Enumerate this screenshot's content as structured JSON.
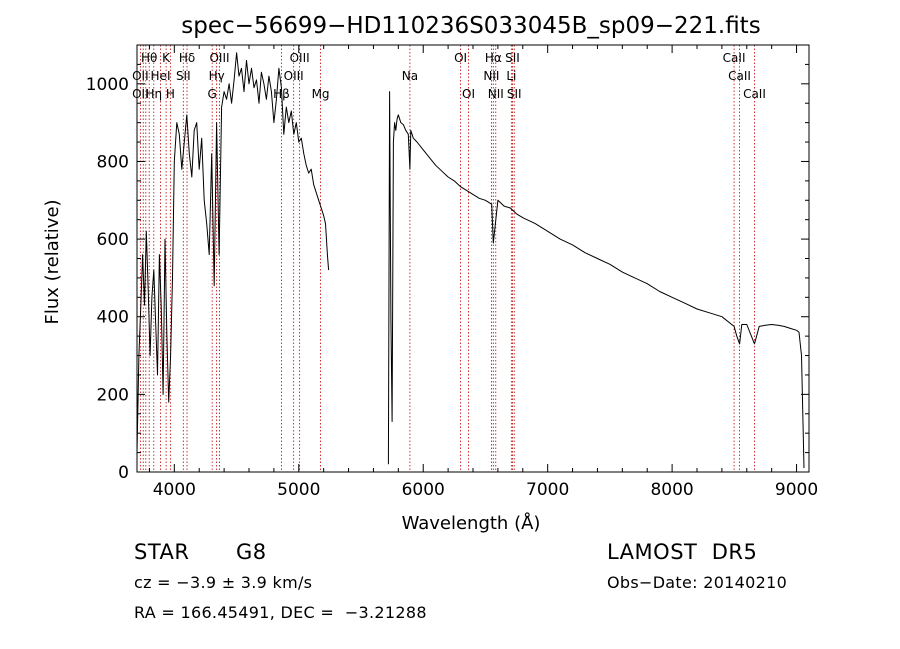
{
  "chart_data": {
    "type": "line",
    "title": "spec−56699−HD110236S033045B_sp09−221.fits",
    "xlabel": "Wavelength (Å)",
    "ylabel": "Flux (relative)",
    "xlim": [
      3700,
      9100
    ],
    "ylim": [
      0,
      1100
    ],
    "x_ticks": [
      4000,
      5000,
      6000,
      7000,
      8000,
      9000
    ],
    "y_ticks": [
      0,
      200,
      400,
      600,
      800,
      1000
    ],
    "x_tick_labels": [
      "4000",
      "5000",
      "6000",
      "7000",
      "8000",
      "9000"
    ],
    "y_tick_labels": [
      "0",
      "200",
      "400",
      "600",
      "800",
      "1000"
    ],
    "series": [
      {
        "segments": [
          {
            "x": [
              3700,
              3715,
              3730,
              3745,
              3760,
              3775,
              3790,
              3805,
              3820,
              3835,
              3850,
              3865,
              3880,
              3895,
              3910,
              3925,
              3940,
              3955,
              3970,
              3985,
              4000,
              4020,
              4040,
              4060,
              4080,
              4100,
              4120,
              4140,
              4160,
              4180,
              4200,
              4220,
              4240,
              4260,
              4280,
              4300,
              4320,
              4340,
              4360,
              4380,
              4400,
              4420,
              4440,
              4460,
              4480,
              4500,
              4520,
              4540,
              4560,
              4580,
              4600,
              4620,
              4640,
              4660,
              4680,
              4700,
              4720,
              4740,
              4760,
              4780,
              4800,
              4820,
              4840,
              4860,
              4880,
              4900,
              4920,
              4940,
              4960,
              4980,
              5000,
              5020,
              5040,
              5060,
              5080,
              5100,
              5120,
              5140,
              5160,
              5180,
              5200,
              5215,
              5230,
              5240
            ],
            "y": [
              50,
              300,
              420,
              560,
              430,
              620,
              470,
              300,
              450,
              520,
              380,
              250,
              560,
              420,
              200,
              600,
              350,
              180,
              300,
              500,
              800,
              900,
              870,
              780,
              850,
              920,
              820,
              760,
              880,
              900,
              780,
              860,
              700,
              640,
              560,
              820,
              480,
              900,
              560,
              940,
              980,
              960,
              1000,
              950,
              1010,
              1080,
              1020,
              1040,
              980,
              1060,
              1000,
              1040,
              990,
              1010,
              950,
              1030,
              1000,
              960,
              1020,
              980,
              900,
              960,
              1040,
              990,
              870,
              940,
              900,
              930,
              870,
              900,
              850,
              860,
              820,
              790,
              770,
              780,
              740,
              720,
              700,
              680,
              660,
              640,
              560,
              520
            ]
          },
          {
            "x": [
              5720,
              5730,
              5740,
              5750,
              5760,
              5770,
              5780,
              5790,
              5800,
              5810,
              5820,
              5840,
              5860,
              5880,
              5893,
              5900,
              5920,
              5950,
              6000,
              6050,
              6100,
              6150,
              6200,
              6250,
              6300,
              6350,
              6400,
              6450,
              6500,
              6550,
              6563,
              6600,
              6650,
              6700,
              6750,
              6800,
              6900,
              7000,
              7100,
              7200,
              7300,
              7400,
              7500,
              7600,
              7700,
              7800,
              7900,
              8000,
              8100,
              8200,
              8300,
              8400,
              8498,
              8520,
              8542,
              8560,
              8600,
              8662,
              8700,
              8750,
              8800,
              8850,
              8900,
              8950,
              9000,
              9020,
              9040,
              9060
            ],
            "y": [
              20,
              980,
              400,
              130,
              850,
              900,
              880,
              910,
              920,
              910,
              900,
              895,
              880,
              870,
              780,
              880,
              860,
              850,
              830,
              810,
              790,
              775,
              760,
              750,
              735,
              725,
              715,
              705,
              700,
              690,
              590,
              700,
              685,
              680,
              665,
              655,
              640,
              620,
              600,
              585,
              565,
              550,
              535,
              515,
              500,
              485,
              465,
              450,
              435,
              420,
              410,
              400,
              375,
              350,
              330,
              380,
              380,
              330,
              375,
              378,
              380,
              378,
              375,
              370,
              365,
              360,
              300,
              10
            ]
          }
        ]
      }
    ],
    "annotations": [
      {
        "label": "Hθ",
        "x": 3798,
        "row": 0
      },
      {
        "label": "K",
        "x": 3934,
        "row": 0
      },
      {
        "label": "Hδ",
        "x": 4102,
        "row": 0
      },
      {
        "label": "OIII",
        "x": 4363,
        "row": 0
      },
      {
        "label": "OIII",
        "x": 5007,
        "row": 0
      },
      {
        "label": "OI",
        "x": 6300,
        "row": 0
      },
      {
        "label": "Hα",
        "x": 6563,
        "row": 0
      },
      {
        "label": "SII",
        "x": 6717,
        "row": 0
      },
      {
        "label": "CaII",
        "x": 8498,
        "row": 0
      },
      {
        "label": "OII",
        "x": 3727,
        "row": 1
      },
      {
        "label": "HeI",
        "x": 3889,
        "row": 1
      },
      {
        "label": "SII",
        "x": 4072,
        "row": 1
      },
      {
        "label": "Hγ",
        "x": 4340,
        "row": 1
      },
      {
        "label": "OIII",
        "x": 4959,
        "row": 1
      },
      {
        "label": "Na",
        "x": 5893,
        "row": 1
      },
      {
        "label": "NII",
        "x": 6548,
        "row": 1
      },
      {
        "label": "Li",
        "x": 6708,
        "row": 1
      },
      {
        "label": "CaII",
        "x": 8542,
        "row": 1
      },
      {
        "label": "OII",
        "x": 3727,
        "row": 2
      },
      {
        "label": "Hη",
        "x": 3835,
        "row": 2
      },
      {
        "label": "H",
        "x": 3968,
        "row": 2
      },
      {
        "label": "G",
        "x": 4304,
        "row": 2
      },
      {
        "label": "Hβ",
        "x": 4861,
        "row": 2
      },
      {
        "label": "Mg",
        "x": 5175,
        "row": 2
      },
      {
        "label": "OI",
        "x": 6364,
        "row": 2
      },
      {
        "label": "NII",
        "x": 6583,
        "row": 2
      },
      {
        "label": "SII",
        "x": 6731,
        "row": 2
      },
      {
        "label": "CaII",
        "x": 8662,
        "row": 2
      }
    ],
    "line_marks": [
      3727,
      3750,
      3771,
      3798,
      3835,
      3889,
      3934,
      3968,
      4072,
      4102,
      4304,
      4340,
      4363,
      4861,
      4959,
      5007,
      5175,
      5893,
      6300,
      6364,
      6548,
      6563,
      6583,
      6708,
      6717,
      6731,
      8498,
      8542,
      8662
    ],
    "grid": false,
    "legend": "none"
  },
  "footer": {
    "object_class": "STAR",
    "subclass": "G8",
    "survey": "LAMOST  DR5",
    "cz": "cz = −3.9 ± 3.9 km/s",
    "obs_date": "Obs−Date: 20140210",
    "coords": "RA = 166.45491, DEC =  −3.21288"
  },
  "colors": {
    "spectrum": "#000000",
    "line_marks": "#c00000",
    "axes": "#000000"
  }
}
